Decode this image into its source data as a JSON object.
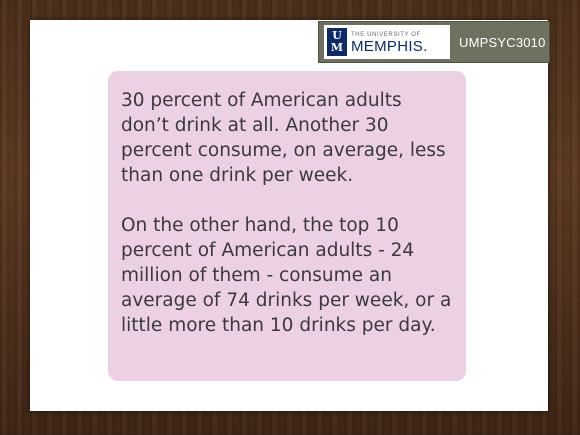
{
  "header": {
    "logo_top_line": "THE UNIVERSITY OF",
    "logo_main": "MEMPHIS.",
    "logo_mark_top": "U",
    "logo_mark_bottom": "M",
    "course_code": "UMPSYC3010"
  },
  "body": {
    "paragraphs": [
      "30 percent of American adults don’t drink at all. Another 30 percent consume, on average, less than one drink per week.",
      "On the other hand, the top 10 percent of American adults - 24 million of them - consume an average of 74 drinks per week, or a little more than 10 drinks per day."
    ]
  },
  "colors": {
    "frame": "#4a2e1a",
    "slide": "#ffffff",
    "content_box": "#ecd0e4",
    "header_box": "#6e7160",
    "brand_blue": "#0d2a6b",
    "text": "#3a3a3a"
  }
}
